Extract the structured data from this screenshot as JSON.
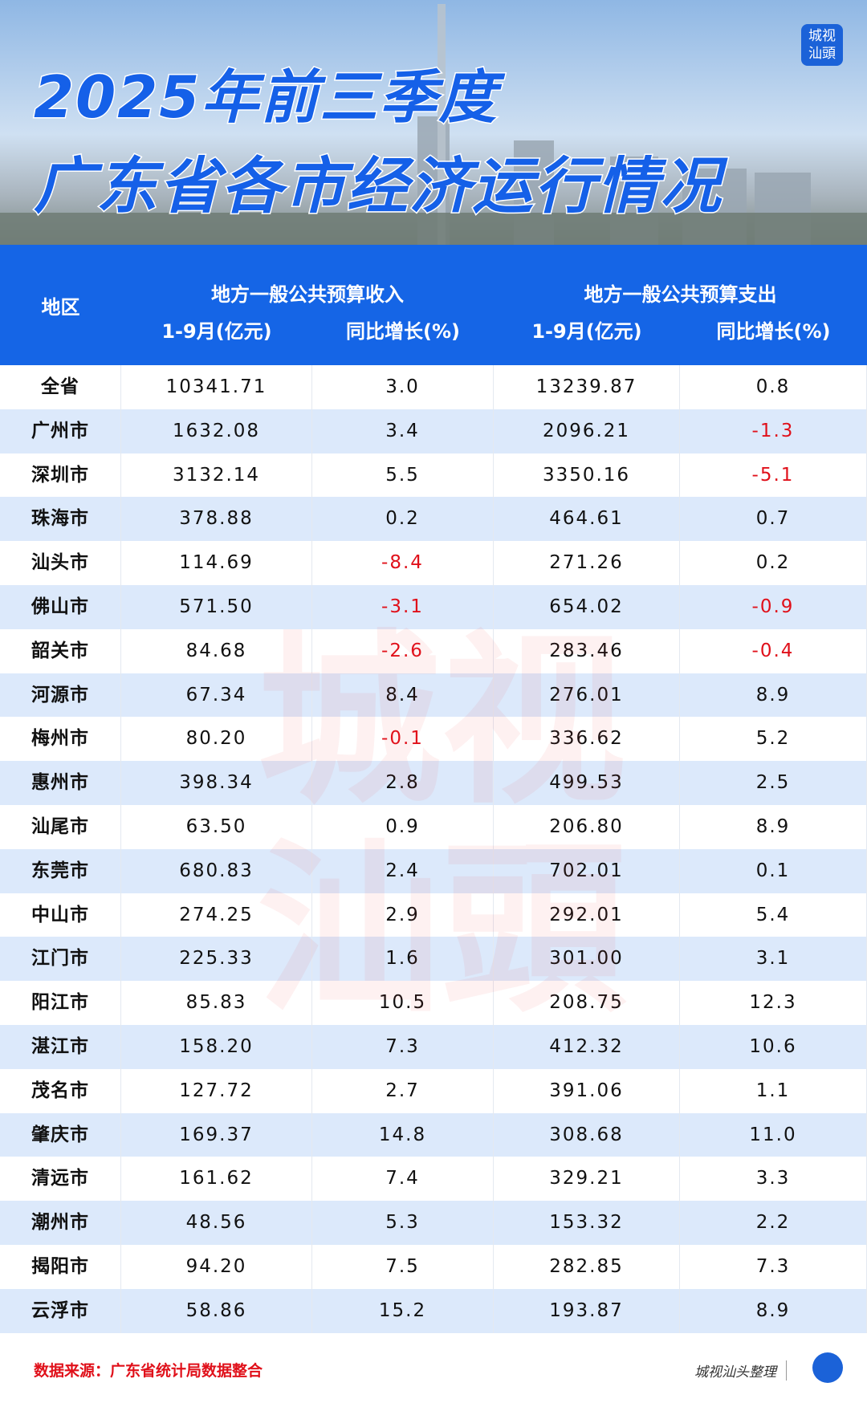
{
  "header": {
    "title_line1": "2025年前三季度",
    "title_line2": "广东省各市经济运行情况",
    "logo": [
      "城视",
      "汕頭"
    ]
  },
  "table": {
    "region_header": "地区",
    "group_headers": [
      "地方一般公共预算收入",
      "地方一般公共预算支出"
    ],
    "sub_headers": [
      "1-9月(亿元)",
      "同比增长(%)",
      "1-9月(亿元)",
      "同比增长(%)"
    ],
    "rows": [
      [
        "全省",
        "10341.71",
        "3.0",
        "13239.87",
        "0.8"
      ],
      [
        "广州市",
        "1632.08",
        "3.4",
        "2096.21",
        "-1.3"
      ],
      [
        "深圳市",
        "3132.14",
        "5.5",
        "3350.16",
        "-5.1"
      ],
      [
        "珠海市",
        "378.88",
        "0.2",
        "464.61",
        "0.7"
      ],
      [
        "汕头市",
        "114.69",
        "-8.4",
        "271.26",
        "0.2"
      ],
      [
        "佛山市",
        "571.50",
        "-3.1",
        "654.02",
        "-0.9"
      ],
      [
        "韶关市",
        "84.68",
        "-2.6",
        "283.46",
        "-0.4"
      ],
      [
        "河源市",
        "67.34",
        "8.4",
        "276.01",
        "8.9"
      ],
      [
        "梅州市",
        "80.20",
        "-0.1",
        "336.62",
        "5.2"
      ],
      [
        "惠州市",
        "398.34",
        "2.8",
        "499.53",
        "2.5"
      ],
      [
        "汕尾市",
        "63.50",
        "0.9",
        "206.80",
        "8.9"
      ],
      [
        "东莞市",
        "680.83",
        "2.4",
        "702.01",
        "0.1"
      ],
      [
        "中山市",
        "274.25",
        "2.9",
        "292.01",
        "5.4"
      ],
      [
        "江门市",
        "225.33",
        "1.6",
        "301.00",
        "3.1"
      ],
      [
        "阳江市",
        "85.83",
        "10.5",
        "208.75",
        "12.3"
      ],
      [
        "湛江市",
        "158.20",
        "7.3",
        "412.32",
        "10.6"
      ],
      [
        "茂名市",
        "127.72",
        "2.7",
        "391.06",
        "1.1"
      ],
      [
        "肇庆市",
        "169.37",
        "14.8",
        "308.68",
        "11.0"
      ],
      [
        "清远市",
        "161.62",
        "7.4",
        "329.21",
        "3.3"
      ],
      [
        "潮州市",
        "48.56",
        "5.3",
        "153.32",
        "2.2"
      ],
      [
        "揭阳市",
        "94.20",
        "7.5",
        "282.85",
        "7.3"
      ],
      [
        "云浮市",
        "58.86",
        "15.2",
        "193.87",
        "8.9"
      ]
    ]
  },
  "watermark": [
    "城视",
    "汕頭"
  ],
  "footer": {
    "source": "数据来源：广东省统计局数据整合",
    "credit": "城视汕头整理"
  }
}
